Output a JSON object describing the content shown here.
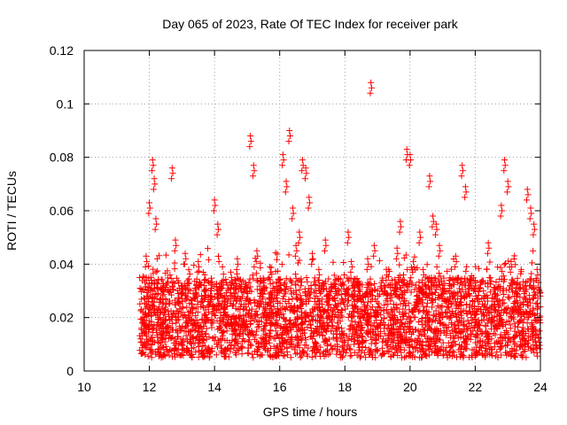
{
  "chart_data": {
    "type": "scatter",
    "title": "Day 065 of 2023, Rate Of TEC Index for receiver park",
    "xlabel": "GPS time / hours",
    "ylabel": "ROTI / TECUs",
    "xlim": [
      10,
      24
    ],
    "ylim": [
      0,
      0.12
    ],
    "xticks": [
      10,
      12,
      14,
      16,
      18,
      20,
      22,
      24
    ],
    "yticks": [
      0,
      0.02,
      0.04,
      0.06,
      0.08,
      0.1,
      0.12
    ],
    "xtick_labels": [
      "10",
      "12",
      "14",
      "16",
      "18",
      "20",
      "22",
      "24"
    ],
    "ytick_labels": [
      "0",
      "0.02",
      "0.04",
      "0.06",
      "0.08",
      "0.1",
      "0.12"
    ],
    "grid": true,
    "marker": "plus",
    "color": "#ff0000",
    "series": [
      {
        "name": "ROTI",
        "x": [
          11.75,
          11.8,
          11.85,
          11.9,
          11.95,
          12.0,
          12.05,
          12.1,
          12.15,
          12.2,
          12.25,
          12.3,
          12.4,
          12.5,
          12.6,
          12.7,
          12.8,
          12.9,
          13.0,
          13.1,
          13.2,
          13.3,
          13.4,
          13.5,
          13.6,
          13.7,
          13.8,
          13.9,
          14.0,
          14.1,
          14.2,
          14.3,
          14.4,
          14.5,
          14.6,
          14.7,
          14.8,
          14.9,
          15.0,
          15.1,
          15.2,
          15.3,
          15.4,
          15.5,
          15.6,
          15.7,
          15.8,
          15.9,
          16.0,
          16.1,
          16.2,
          16.3,
          16.4,
          16.5,
          16.6,
          16.7,
          16.8,
          16.9,
          17.0,
          17.1,
          17.2,
          17.3,
          17.4,
          17.5,
          17.6,
          17.7,
          17.8,
          17.9,
          18.0,
          18.1,
          18.2,
          18.3,
          18.4,
          18.5,
          18.6,
          18.7,
          18.8,
          18.9,
          19.0,
          19.1,
          19.2,
          19.3,
          19.4,
          19.5,
          19.6,
          19.7,
          19.8,
          19.9,
          20.0,
          20.1,
          20.2,
          20.3,
          20.4,
          20.5,
          20.6,
          20.7,
          20.8,
          20.9,
          21.0,
          21.1,
          21.2,
          21.3,
          21.4,
          21.5,
          21.6,
          21.7,
          21.8,
          21.9,
          22.0,
          22.1,
          22.2,
          22.3,
          22.4,
          22.5,
          22.6,
          22.7,
          22.8,
          22.9,
          23.0,
          23.1,
          23.2,
          23.3,
          23.4,
          23.5,
          23.6,
          23.7,
          23.8,
          23.9,
          24.0
        ],
        "y": [
          0.016,
          0.022,
          0.019,
          0.043,
          0.028,
          0.063,
          0.035,
          0.079,
          0.072,
          0.057,
          0.031,
          0.024,
          0.018,
          0.027,
          0.021,
          0.076,
          0.049,
          0.033,
          0.026,
          0.044,
          0.022,
          0.019,
          0.031,
          0.041,
          0.028,
          0.036,
          0.024,
          0.03,
          0.064,
          0.055,
          0.033,
          0.025,
          0.021,
          0.037,
          0.029,
          0.042,
          0.027,
          0.018,
          0.031,
          0.088,
          0.077,
          0.045,
          0.028,
          0.033,
          0.022,
          0.039,
          0.026,
          0.019,
          0.034,
          0.081,
          0.071,
          0.09,
          0.061,
          0.047,
          0.052,
          0.079,
          0.076,
          0.065,
          0.044,
          0.03,
          0.038,
          0.025,
          0.049,
          0.027,
          0.019,
          0.031,
          0.022,
          0.016,
          0.029,
          0.052,
          0.041,
          0.026,
          0.032,
          0.018,
          0.024,
          0.042,
          0.108,
          0.047,
          0.03,
          0.021,
          0.016,
          0.027,
          0.019,
          0.025,
          0.046,
          0.056,
          0.036,
          0.083,
          0.081,
          0.041,
          0.028,
          0.052,
          0.038,
          0.024,
          0.073,
          0.058,
          0.055,
          0.047,
          0.031,
          0.026,
          0.034,
          0.029,
          0.043,
          0.021,
          0.077,
          0.069,
          0.033,
          0.024,
          0.03,
          0.019,
          0.027,
          0.025,
          0.048,
          0.022,
          0.031,
          0.026,
          0.062,
          0.079,
          0.071,
          0.041,
          0.028,
          0.033,
          0.023,
          0.029,
          0.068,
          0.061,
          0.055,
          0.038,
          0.024
        ]
      }
    ],
    "dense_band": {
      "description_free": true,
      "x_start": 11.7,
      "x_end": 24.0,
      "y_low": 0.005,
      "y_high": 0.035,
      "point_count": 3200,
      "seed": 65
    }
  }
}
